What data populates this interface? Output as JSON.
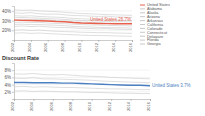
{
  "chart_data": [
    {
      "type": "line",
      "x": [
        2002,
        2003,
        2004,
        2005,
        2006,
        2007,
        2008,
        2009,
        2010,
        2011,
        2012,
        2013,
        2014,
        2015,
        2016
      ],
      "xlim": [
        2002,
        2016
      ],
      "xticks": [
        2002,
        2004,
        2006,
        2008,
        2010,
        2012,
        2014,
        2016
      ],
      "ylim": [
        10,
        45
      ],
      "yticks": [
        {
          "value": 20,
          "label": "20%"
        },
        {
          "value": 30,
          "label": "30%"
        },
        {
          "value": 40,
          "label": "40%"
        }
      ],
      "grid": true,
      "legend": "top-right",
      "annotation": "United States 26.7%",
      "series": [
        {
          "name": "United States",
          "color": "#e8604c",
          "values": [
            30.5,
            30.2,
            30.0,
            29.8,
            29.5,
            29.0,
            28.8,
            28.0,
            27.5,
            27.2,
            27.0,
            26.9,
            26.8,
            26.7,
            26.7
          ]
        },
        {
          "name": "Alabama",
          "color": "#c8c8c8",
          "values": [
            24,
            24.5,
            23.8,
            24.2,
            23.5,
            23.0,
            22.8,
            22.5,
            22.0,
            21.8,
            21.5,
            21.7,
            21.2,
            21.0,
            20.8
          ]
        },
        {
          "name": "Alaska",
          "color": "#c8c8c8",
          "values": [
            38,
            37.5,
            38.2,
            37.0,
            36.5,
            36.8,
            35.9,
            35.2,
            35.0,
            34.6,
            34.2,
            34.5,
            33.8,
            33.5,
            33.2
          ]
        },
        {
          "name": "Arizona",
          "color": "#c8c8c8",
          "values": [
            28,
            28.4,
            27.9,
            28.2,
            27.5,
            27.0,
            26.8,
            26.2,
            25.9,
            25.5,
            25.4,
            25.0,
            24.8,
            24.7,
            24.5
          ]
        },
        {
          "name": "Arkansas",
          "color": "#c8c8c8",
          "values": [
            20,
            20.5,
            19.8,
            20.2,
            19.5,
            19.0,
            18.7,
            18.4,
            18.0,
            17.8,
            17.5,
            17.6,
            17.2,
            17.0,
            16.9
          ]
        },
        {
          "name": "California",
          "color": "#c8c8c8",
          "values": [
            33,
            33.2,
            32.8,
            32.5,
            32.0,
            31.6,
            31.2,
            30.5,
            30.0,
            29.8,
            29.5,
            29.2,
            29.0,
            28.8,
            28.6
          ]
        },
        {
          "name": "Colorado",
          "color": "#c8c8c8",
          "values": [
            35,
            34.6,
            34.9,
            34.2,
            33.8,
            33.5,
            33.0,
            32.2,
            31.8,
            31.5,
            31.0,
            30.8,
            30.6,
            30.2,
            30.0
          ]
        },
        {
          "name": "Connecticut",
          "color": "#c8c8c8",
          "values": [
            26,
            26.3,
            25.8,
            26.0,
            25.5,
            25.2,
            24.8,
            24.0,
            23.6,
            23.4,
            23.0,
            22.8,
            22.6,
            22.5,
            22.3
          ]
        },
        {
          "name": "Delaware",
          "color": "#c8c8c8",
          "values": [
            41,
            40.5,
            40.8,
            40.0,
            39.6,
            39.2,
            38.5,
            37.8,
            37.2,
            37.0,
            36.5,
            36.2,
            35.9,
            35.6,
            35.4
          ]
        },
        {
          "name": "Florida",
          "color": "#c8c8c8",
          "values": [
            31,
            31.4,
            30.8,
            31.2,
            30.6,
            30.0,
            29.5,
            28.8,
            28.4,
            28.0,
            27.8,
            27.5,
            27.2,
            27.0,
            26.9
          ]
        },
        {
          "name": "Georgia",
          "color": "#c8c8c8",
          "values": [
            17,
            17.4,
            16.8,
            17.2,
            16.6,
            16.2,
            15.8,
            15.4,
            15.0,
            14.8,
            14.6,
            14.5,
            14.2,
            14.0,
            13.8
          ]
        }
      ]
    },
    {
      "type": "line",
      "title": "Discount Rate",
      "x": [
        2002,
        2003,
        2004,
        2005,
        2006,
        2007,
        2008,
        2009,
        2010,
        2011,
        2012,
        2013,
        2014,
        2015,
        2016
      ],
      "xlim": [
        2002,
        2016
      ],
      "xticks": [
        2002,
        2004,
        2006,
        2008,
        2010,
        2012,
        2014,
        2016
      ],
      "ylim": [
        0,
        10
      ],
      "yticks": [
        {
          "value": 2,
          "label": "2%"
        },
        {
          "value": 4,
          "label": "4%"
        },
        {
          "value": 6,
          "label": "6%"
        },
        {
          "value": 8,
          "label": "8%"
        }
      ],
      "grid": true,
      "annotation": "United States 3.7%",
      "series": [
        {
          "name": "United States",
          "color": "#4a7fc1",
          "values": [
            4.6,
            4.6,
            4.5,
            4.5,
            4.5,
            4.4,
            4.4,
            4.3,
            4.2,
            4.1,
            4.0,
            3.9,
            3.8,
            3.8,
            3.7
          ]
        },
        {
          "color": "#c8c8c8",
          "values": [
            7.0,
            6.9,
            7.1,
            6.8,
            6.7,
            6.8,
            6.6,
            6.4,
            6.3,
            6.2,
            6.0,
            5.9,
            5.8,
            5.7,
            5.6
          ]
        },
        {
          "color": "#c8c8c8",
          "values": [
            5.8,
            5.7,
            5.9,
            5.6,
            5.6,
            5.5,
            5.4,
            5.3,
            5.2,
            5.0,
            4.9,
            4.8,
            4.7,
            4.6,
            4.5
          ]
        },
        {
          "color": "#c8c8c8",
          "values": [
            3.4,
            3.5,
            3.3,
            3.4,
            3.3,
            3.2,
            3.2,
            3.1,
            3.0,
            2.9,
            2.8,
            2.8,
            2.7,
            2.6,
            2.6
          ]
        },
        {
          "color": "#c8c8c8",
          "values": [
            2.2,
            2.3,
            2.1,
            2.2,
            2.1,
            2.0,
            2.0,
            1.9,
            1.8,
            1.8,
            1.7,
            1.6,
            1.6,
            1.5,
            1.5
          ]
        }
      ]
    }
  ]
}
